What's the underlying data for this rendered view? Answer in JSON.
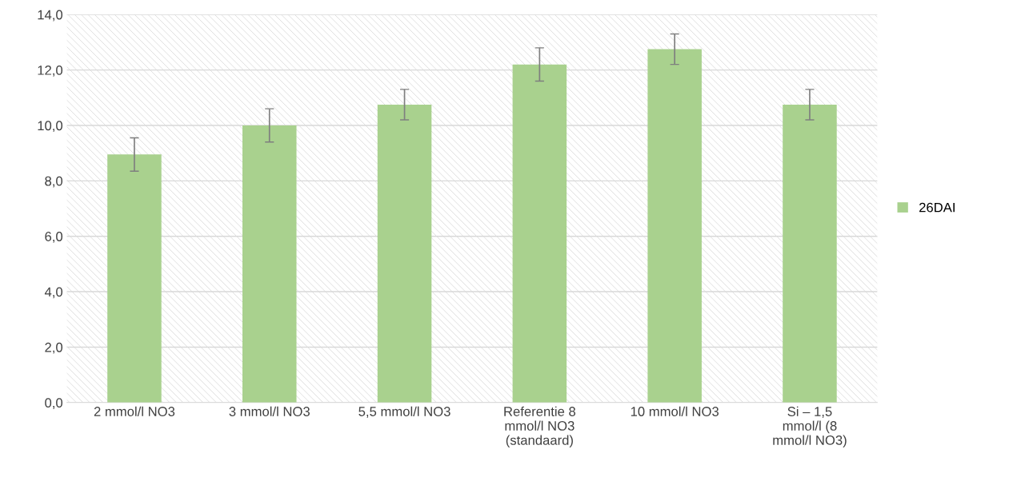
{
  "chart_data": {
    "type": "bar",
    "categories": [
      "2 mmol/l NO3",
      "3 mmol/l NO3",
      "5,5 mmol/l NO3",
      "Referentie 8 mmol/l NO3 (standaard)",
      "10 mmol/l NO3",
      "Si – 1,5 mmol/l (8 mmol/l NO3)"
    ],
    "series": [
      {
        "name": "26DAI",
        "color": "#a9d18e",
        "values": [
          8.95,
          10.0,
          10.75,
          12.2,
          12.75,
          10.75
        ],
        "errors": [
          0.6,
          0.6,
          0.55,
          0.6,
          0.55,
          0.55
        ]
      }
    ],
    "ylim": [
      0,
      14
    ],
    "yticks": [
      {
        "value": 0,
        "label": "0,0"
      },
      {
        "value": 2,
        "label": "2,0"
      },
      {
        "value": 4,
        "label": "4,0"
      },
      {
        "value": 6,
        "label": "6,0"
      },
      {
        "value": 8,
        "label": "8,0"
      },
      {
        "value": 10,
        "label": "10,0"
      },
      {
        "value": 12,
        "label": "12,0"
      },
      {
        "value": 14,
        "label": "14,0"
      }
    ],
    "grid": "y",
    "legend": "right"
  }
}
